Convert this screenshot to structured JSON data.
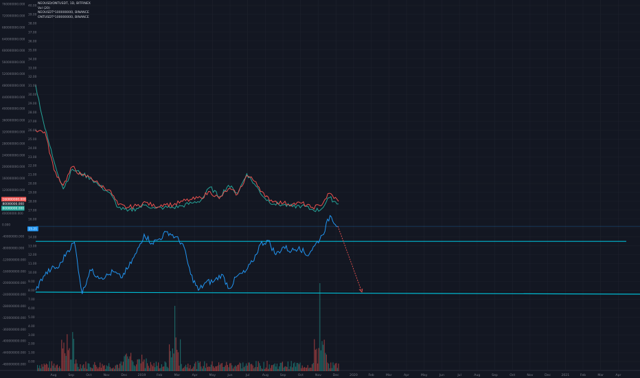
{
  "legend": {
    "symbol": "NEOUSD/ONTUSDT, 1D, BITFINEX",
    "indicator": "Vol (20)",
    "line2": "NEOUSDT*100000000, BINANCE",
    "line3": "ONTUSDT*100000000, BINANCE"
  },
  "colors": {
    "background": "#131722",
    "grid": "#1e222d",
    "axis_text": "#787b86",
    "up": "#26a69a",
    "down": "#ef5350",
    "ratio_line": "#2196f3",
    "level_line": "#00bcd4",
    "projection": "#ef5350",
    "badge_red": "#ef5350",
    "badge_green": "#26a69a",
    "badge_blue": "#2196f3"
  },
  "chart_data": {
    "type": "line",
    "x_ticks": [
      "Aug",
      "Sep",
      "Oct",
      "Nov",
      "Dec",
      "2019",
      "Feb",
      "Mar",
      "Apr",
      "May",
      "Jun",
      "Jul",
      "Aug",
      "Sep",
      "Oct",
      "Nov",
      "Dec",
      "2020",
      "Feb",
      "Mar",
      "Apr",
      "May",
      "Jun",
      "Jul",
      "Aug",
      "Sep",
      "Oct",
      "Nov",
      "Dec",
      "2021",
      "Feb",
      "Mar",
      "Apr"
    ],
    "right_axis_ticks": [
      "40.00",
      "39.00",
      "38.00",
      "37.00",
      "36.00",
      "35.00",
      "34.00",
      "33.00",
      "32.00",
      "31.00",
      "30.00",
      "29.00",
      "28.00",
      "27.00",
      "26.00",
      "25.00",
      "24.00",
      "23.00",
      "22.00",
      "21.00",
      "20.00",
      "19.00",
      "18.00",
      "17.00",
      "16.00",
      "15.00",
      "14.00",
      "13.00",
      "12.00",
      "11.00",
      "10.00",
      "9.00",
      "8.00",
      "7.00",
      "6.00",
      "5.00",
      "4.00",
      "3.00",
      "2.00",
      "1.00",
      "0.00"
    ],
    "left_axis_ticks": [
      "760000000.000",
      "720000000.000",
      "680000000.000",
      "640000000.000",
      "600000000.000",
      "560000000.000",
      "520000000.000",
      "480000000.000",
      "440000000.000",
      "400000000.000",
      "360000000.000",
      "320000000.000",
      "280000000.000",
      "240000000.000",
      "200000000.000",
      "160000000.000",
      "120000000.000",
      "80000000.000",
      "40000000.000",
      "0.000",
      "-40000000.000",
      "-80000000.000",
      "-120000000.000",
      "-160000000.000",
      "-200000000.000",
      "-240000000.000",
      "-280000000.000",
      "-320000000.000",
      "-360000000.000",
      "-400000000.000",
      "-440000000.000",
      "-480000000.000"
    ],
    "badges": {
      "neo": "160000000.000",
      "ont": "80000000.000",
      "ratio": "15.21",
      "left_green": "60000000.000"
    },
    "ratio_series": {
      "name": "NEOUSD/ONTUSDT",
      "points": [
        [
          "Aug",
          8.0
        ],
        [
          "Aug",
          9.6
        ],
        [
          "Aug",
          10.4
        ],
        [
          "Sep",
          10.6
        ],
        [
          "Sep",
          12.3
        ],
        [
          "Sep",
          13.4
        ],
        [
          "Sep",
          7.6
        ],
        [
          "Oct",
          10.3
        ],
        [
          "Oct",
          9.6
        ],
        [
          "Nov",
          9.5
        ],
        [
          "Nov",
          10.1
        ],
        [
          "Dec",
          9.4
        ],
        [
          "Dec",
          10.6
        ],
        [
          "Dec",
          12.2
        ],
        [
          "2019",
          14.3
        ],
        [
          "2019",
          13.3
        ],
        [
          "Feb",
          13.8
        ],
        [
          "Feb",
          14.6
        ],
        [
          "Feb",
          14.0
        ],
        [
          "Mar",
          13.2
        ],
        [
          "Mar",
          9.8
        ],
        [
          "Mar",
          8.0
        ],
        [
          "Apr",
          8.9
        ],
        [
          "Apr",
          9.0
        ],
        [
          "May",
          9.8
        ],
        [
          "May",
          8.2
        ],
        [
          "Jun",
          9.6
        ],
        [
          "Jun",
          10.0
        ],
        [
          "Jul",
          11.2
        ],
        [
          "Jul",
          13.2
        ],
        [
          "Aug",
          13.6
        ],
        [
          "Aug",
          12.0
        ],
        [
          "Sep",
          12.9
        ],
        [
          "Sep",
          12.4
        ],
        [
          "Oct",
          12.9
        ],
        [
          "Oct",
          11.9
        ],
        [
          "Nov",
          13.0
        ],
        [
          "Nov",
          14.2
        ],
        [
          "Nov",
          16.4
        ],
        [
          "Nov",
          15.2
        ]
      ]
    },
    "projection": {
      "from": [
        "Nov",
        15.2
      ],
      "to": [
        "Dec",
        7.8
      ]
    },
    "horizontal_levels": [
      13.5,
      7.8
    ],
    "neo_series": {
      "name": "NEOUSDT*100000000",
      "points": [
        [
          "Aug",
          26.0
        ],
        [
          "Aug",
          25.8
        ],
        [
          "Sep",
          21.5
        ],
        [
          "Sep",
          19.8
        ],
        [
          "Sep",
          21.9
        ],
        [
          "Oct",
          20.9
        ],
        [
          "Oct",
          20.7
        ],
        [
          "Nov",
          19.8
        ],
        [
          "Nov",
          19.3
        ],
        [
          "Dec",
          17.6
        ],
        [
          "Dec",
          17.3
        ],
        [
          "2019",
          17.5
        ],
        [
          "2019",
          17.9
        ],
        [
          "Feb",
          17.4
        ],
        [
          "Feb",
          17.7
        ],
        [
          "Mar",
          17.6
        ],
        [
          "Mar",
          18.0
        ],
        [
          "Apr",
          18.2
        ],
        [
          "Apr",
          18.4
        ],
        [
          "May",
          19.1
        ],
        [
          "May",
          18.3
        ],
        [
          "Jun",
          19.4
        ],
        [
          "Jun",
          18.8
        ],
        [
          "Jul",
          20.9
        ],
        [
          "Jul",
          20.2
        ],
        [
          "Aug",
          18.5
        ],
        [
          "Aug",
          18.0
        ],
        [
          "Sep",
          17.8
        ],
        [
          "Sep",
          17.7
        ],
        [
          "Oct",
          17.8
        ],
        [
          "Oct",
          17.3
        ],
        [
          "Nov",
          17.5
        ],
        [
          "Nov",
          18.9
        ],
        [
          "Nov",
          18.0
        ]
      ]
    },
    "ont_series": {
      "name": "ONTUSDT*100000000",
      "points": [
        [
          "Aug",
          31.0
        ],
        [
          "Aug",
          26.2
        ],
        [
          "Sep",
          22.5
        ],
        [
          "Sep",
          19.4
        ],
        [
          "Sep",
          21.6
        ],
        [
          "Oct",
          21.1
        ],
        [
          "Oct",
          20.6
        ],
        [
          "Nov",
          19.7
        ],
        [
          "Nov",
          19.0
        ],
        [
          "Dec",
          17.3
        ],
        [
          "Dec",
          16.9
        ],
        [
          "2019",
          17.2
        ],
        [
          "2019",
          17.6
        ],
        [
          "Feb",
          17.2
        ],
        [
          "Feb",
          17.3
        ],
        [
          "Mar",
          17.3
        ],
        [
          "Mar",
          17.5
        ],
        [
          "Apr",
          17.8
        ],
        [
          "Apr",
          18.1
        ],
        [
          "May",
          19.6
        ],
        [
          "May",
          18.5
        ],
        [
          "Jun",
          19.8
        ],
        [
          "Jun",
          18.9
        ],
        [
          "Jul",
          21.1
        ],
        [
          "Jul",
          19.7
        ],
        [
          "Aug",
          18.3
        ],
        [
          "Aug",
          17.7
        ],
        [
          "Sep",
          17.6
        ],
        [
          "Sep",
          17.4
        ],
        [
          "Oct",
          17.5
        ],
        [
          "Oct",
          17.1
        ],
        [
          "Nov",
          17.0
        ],
        [
          "Nov",
          18.4
        ],
        [
          "Nov",
          17.7
        ]
      ]
    }
  }
}
